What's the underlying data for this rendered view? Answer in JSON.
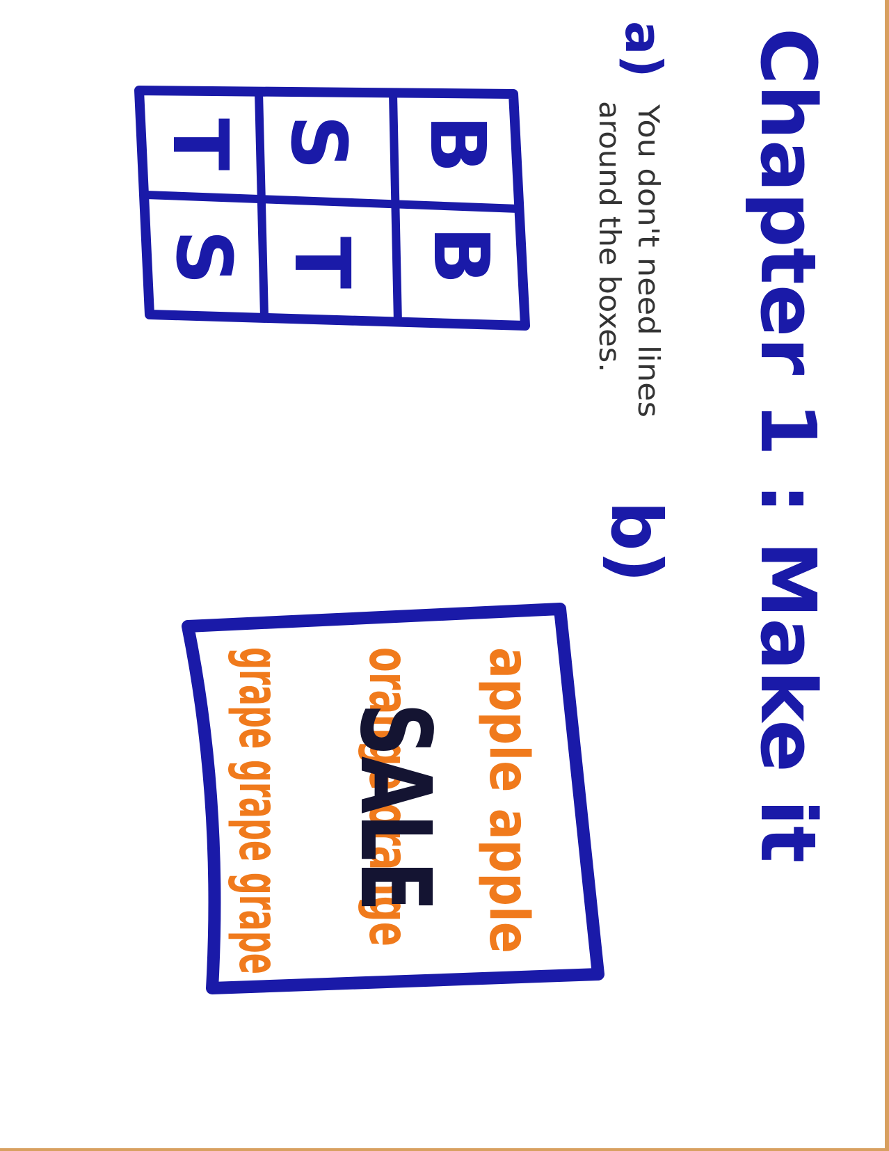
{
  "title": "Chapter 1 : Make it",
  "part_a": {
    "label": "a)",
    "note_line1": "You don't need lines",
    "note_line2": "around the boxes.",
    "grid_top_row": [
      "T",
      "S",
      "B"
    ],
    "grid_bottom_row": [
      "S",
      "T",
      "B"
    ]
  },
  "part_b": {
    "label": "b)",
    "sign_word": "SALE",
    "fruit_line1": "apple apple",
    "fruit_line2": "orange orange",
    "fruit_line3": "grape grape grape"
  },
  "colors": {
    "blue_marker": "#1a1aa8",
    "black_marker": "#141432",
    "orange_marker": "#f07a1c",
    "pen": "#333333"
  }
}
